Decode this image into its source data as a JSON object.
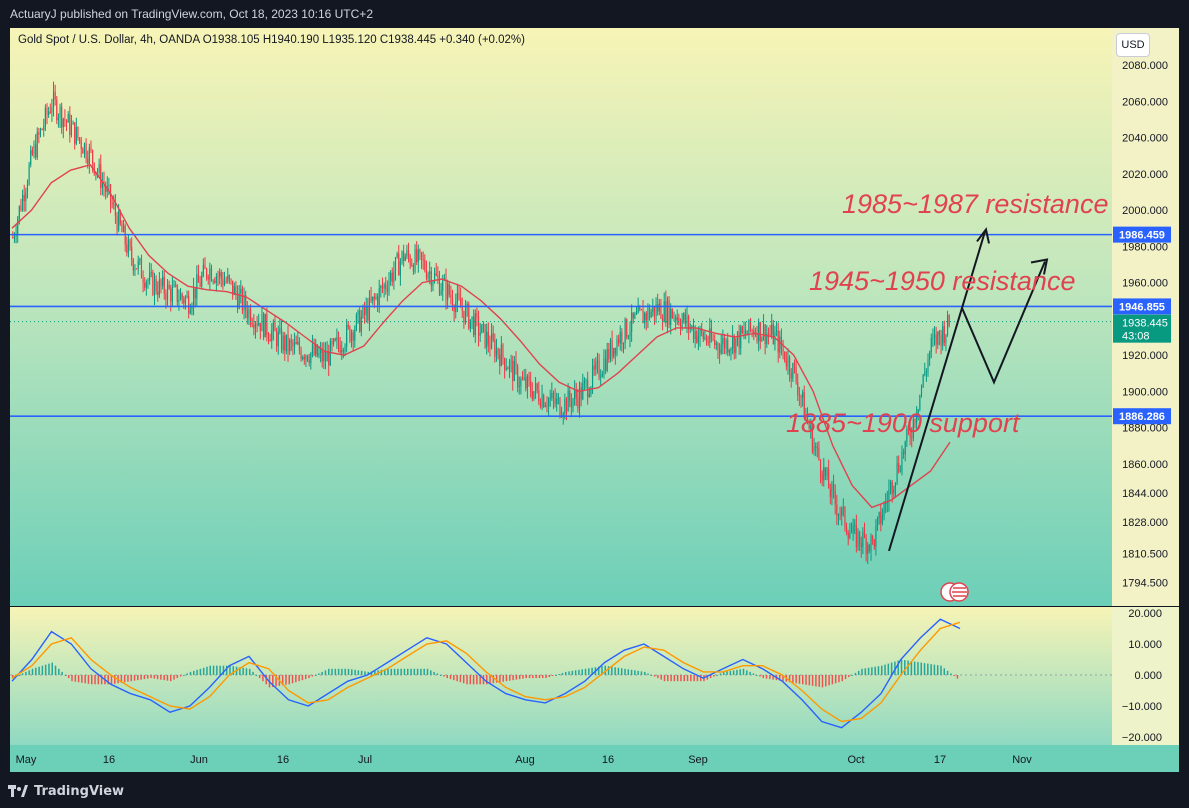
{
  "header": {
    "publisher_text": "ActuaryJ published on TradingView.com, Oct 18, 2023 10:16 UTC+2"
  },
  "footer": {
    "logo_text": "TradingView",
    "logo_icon": "tradingview-logo-icon"
  },
  "main_chart": {
    "legend": "Gold Spot / U.S. Dollar, 4h, OANDA  O1938.105  H1940.190  L1935.120  C1938.445  +0.340 (+0.02%)",
    "currency_button": "USD",
    "price_ticks": [
      "2080.000",
      "2060.000",
      "2040.000",
      "2020.000",
      "2000.000",
      "1980.000",
      "1960.000",
      "1920.000",
      "1900.000",
      "1880.000",
      "1860.000",
      "1844.000",
      "1828.000",
      "1810.500",
      "1794.500"
    ],
    "levels": [
      {
        "label": "1986.459"
      },
      {
        "label": "1946.855"
      },
      {
        "label": "1886.286"
      }
    ],
    "last_price_label": "1938.445",
    "countdown_label": "43:08",
    "annotations": [
      {
        "text": "1985~1987 resistance"
      },
      {
        "text": "1945~1950 resistance"
      },
      {
        "text": "1885~1900 support"
      }
    ],
    "event_icon": "us-flag-events-icon",
    "colors": {
      "level_line": "#2962ff",
      "ma_line": "#e0434f",
      "annotation": "#e0434f",
      "up_candle": "#089981",
      "down_candle": "#f23645",
      "projection": "#131722",
      "bg_top": "#f5f3b8",
      "bg_bottom": "#6fcfb9"
    }
  },
  "oscillator": {
    "ticks": [
      "20.000",
      "10.000",
      "0.000",
      "−10.000",
      "−20.000"
    ]
  },
  "time_axis": {
    "labels": [
      "May",
      "16",
      "Jun",
      "16",
      "Jul",
      "Aug",
      "16",
      "Sep",
      "Oct",
      "17",
      "Nov"
    ]
  },
  "chart_data": [
    {
      "type": "line",
      "title": "Gold Spot / U.S. Dollar, 4h, OANDA",
      "x_labels": [
        "May",
        "16",
        "Jun",
        "16",
        "Jul",
        "Aug",
        "16",
        "Sep",
        "Oct",
        "17",
        "Nov"
      ],
      "ylim": [
        1785,
        2090
      ],
      "series": [
        {
          "values": [
            1985,
            2030,
            2060,
            2045,
            2030,
            2005,
            1975,
            1960,
            1955,
            1950,
            1968,
            1960,
            1945,
            1935,
            1925,
            1922,
            1918,
            1930,
            1942,
            1958,
            1975,
            1970,
            1958,
            1945,
            1932,
            1920,
            1905,
            1898,
            1892,
            1898,
            1912,
            1930,
            1940,
            1946,
            1942,
            1932,
            1926,
            1928,
            1935,
            1930,
            1910,
            1870,
            1840,
            1820,
            1816,
            1850,
            1880,
            1925,
            1938
          ]
        },
        {
          "values": [
            1990,
            2000,
            2015,
            2022,
            2025,
            2010,
            1990,
            1975,
            1965,
            1958,
            1956,
            1955,
            1952,
            1945,
            1938,
            1930,
            1922,
            1920,
            1925,
            1938,
            1950,
            1960,
            1962,
            1958,
            1950,
            1940,
            1928,
            1915,
            1905,
            1900,
            1902,
            1910,
            1920,
            1930,
            1935,
            1935,
            1932,
            1930,
            1932,
            1930,
            1920,
            1900,
            1870,
            1848,
            1836,
            1840,
            1848,
            1856,
            1872
          ]
        }
      ],
      "horizontal_lines": [
        1986.459,
        1946.855,
        1886.286
      ],
      "last_price": 1938.445,
      "annotations": [
        "1985~1987 resistance",
        "1945~1950 resistance",
        "1885~1900 support"
      ],
      "grid": false,
      "projection_path": [
        1812,
        1946,
        1986,
        1905,
        1970
      ]
    },
    {
      "type": "bar",
      "title": "",
      "x_labels": [
        "May",
        "16",
        "Jun",
        "16",
        "Jul",
        "Aug",
        "16",
        "Sep",
        "Oct",
        "17",
        "Nov"
      ],
      "ylim": [
        -22,
        22
      ],
      "series": [
        {
          "values": [
            -2,
            5,
            14,
            10,
            2,
            -3,
            -6,
            -8,
            -12,
            -10,
            -4,
            3,
            6,
            -2,
            -8,
            -10,
            -6,
            -2,
            0,
            4,
            8,
            12,
            10,
            4,
            -2,
            -6,
            -8,
            -9,
            -6,
            -2,
            4,
            8,
            10,
            6,
            2,
            -1,
            2,
            5,
            2,
            -2,
            -8,
            -15,
            -17,
            -12,
            -6,
            5,
            12,
            18,
            15
          ]
        },
        {
          "values": [
            -1,
            3,
            10,
            12,
            5,
            0,
            -4,
            -7,
            -10,
            -11,
            -7,
            0,
            4,
            2,
            -5,
            -9,
            -8,
            -4,
            -1,
            2,
            6,
            10,
            11,
            7,
            1,
            -4,
            -7,
            -8,
            -7,
            -4,
            1,
            6,
            9,
            8,
            4,
            1,
            1,
            3,
            3,
            0,
            -5,
            -11,
            -15,
            -14,
            -9,
            0,
            8,
            15,
            17
          ]
        },
        {
          "values": [
            -1,
            2,
            4,
            -2,
            -3,
            -3,
            -2,
            -1,
            -2,
            1,
            3,
            3,
            2,
            -4,
            -3,
            -1,
            2,
            2,
            1,
            2,
            2,
            2,
            -1,
            -3,
            -3,
            -2,
            -1,
            -1,
            1,
            2,
            3,
            2,
            1,
            -2,
            -2,
            -2,
            1,
            2,
            -1,
            -2,
            -3,
            -4,
            -2,
            2,
            3,
            5,
            4,
            3,
            -2
          ]
        }
      ],
      "grid": false
    }
  ]
}
